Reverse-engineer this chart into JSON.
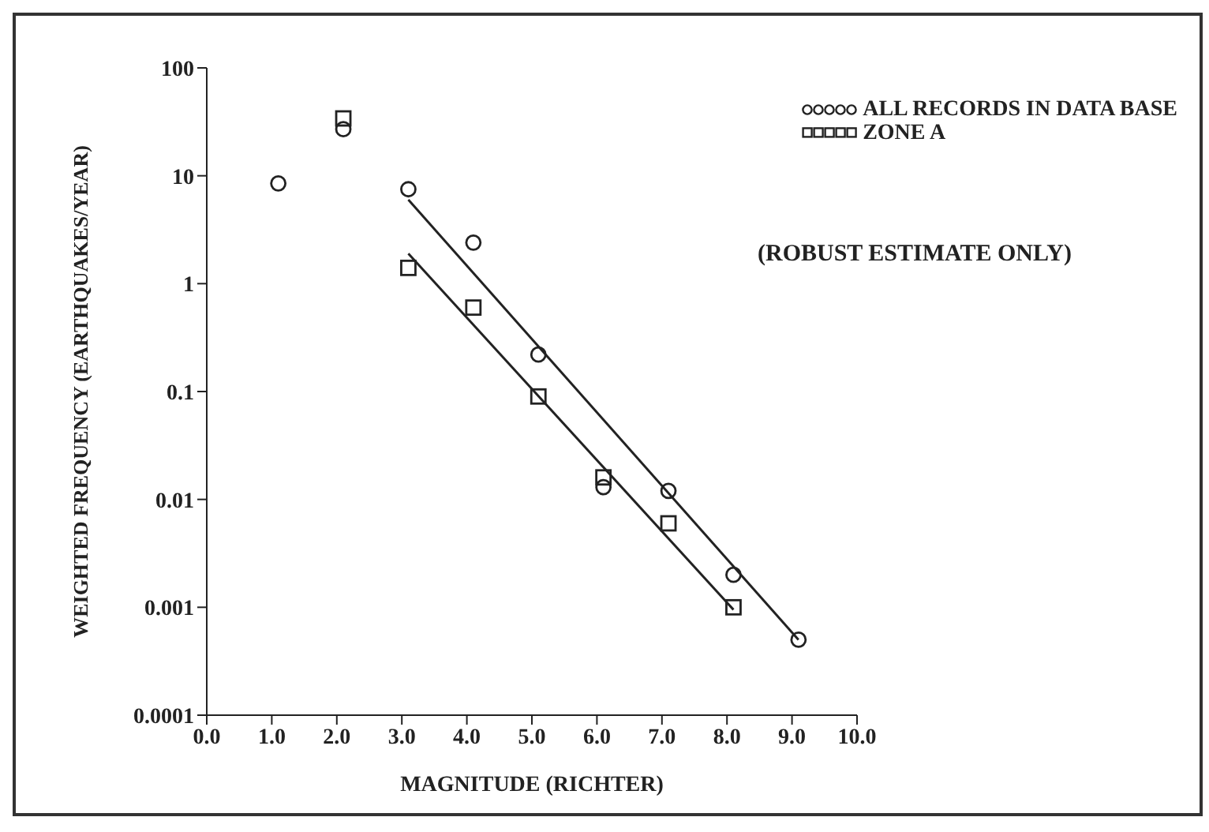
{
  "chart_data": {
    "type": "scatter",
    "xlabel": "MAGNITUDE (RICHTER)",
    "ylabel": "WEIGHTED FREQUENCY (EARTHQUAKES/YEAR)",
    "annotations": [
      "(ROBUST ESTIMATE ONLY)"
    ],
    "series": [
      {
        "name": "ALL RECORDS IN DATA BASE",
        "marker": "circle",
        "color": "#222222",
        "x": [
          1.1,
          2.1,
          3.1,
          4.1,
          5.1,
          6.1,
          7.1,
          8.1,
          9.1
        ],
        "values": [
          8.5,
          27,
          7.5,
          2.4,
          0.22,
          0.013,
          0.012,
          0.002,
          0.0005
        ]
      },
      {
        "name": "ZONE A",
        "marker": "square",
        "color": "#222222",
        "x": [
          2.1,
          3.1,
          4.1,
          5.1,
          6.1,
          7.1,
          8.1
        ],
        "values": [
          34,
          1.4,
          0.6,
          0.09,
          0.016,
          0.006,
          0.001
        ]
      },
      {
        "type": "line",
        "marker": "none",
        "color": "#222222",
        "x": [
          3.1,
          9.1
        ],
        "values": [
          6,
          0.0005
        ]
      },
      {
        "type": "line",
        "marker": "none",
        "color": "#222222",
        "x": [
          3.1,
          8.1
        ],
        "values": [
          1.9,
          0.00095
        ]
      }
    ],
    "xlim": [
      0,
      10
    ],
    "xticks": [
      {
        "value": 0,
        "label": "0.0"
      },
      {
        "value": 1,
        "label": "1.0"
      },
      {
        "value": 2,
        "label": "2.0"
      },
      {
        "value": 3,
        "label": "3.0"
      },
      {
        "value": 4,
        "label": "4.0"
      },
      {
        "value": 5,
        "label": "5.0"
      },
      {
        "value": 6,
        "label": "6.0"
      },
      {
        "value": 7,
        "label": "7.0"
      },
      {
        "value": 8,
        "label": "8.0"
      },
      {
        "value": 9,
        "label": "9.0"
      },
      {
        "value": 10,
        "label": "10.0"
      }
    ],
    "ylim": [
      0.0001,
      100
    ],
    "yticks": [
      0.0001,
      0.001,
      0.01,
      0.1,
      1,
      10,
      100
    ],
    "log": "y",
    "grid": false,
    "legend": "top right"
  }
}
